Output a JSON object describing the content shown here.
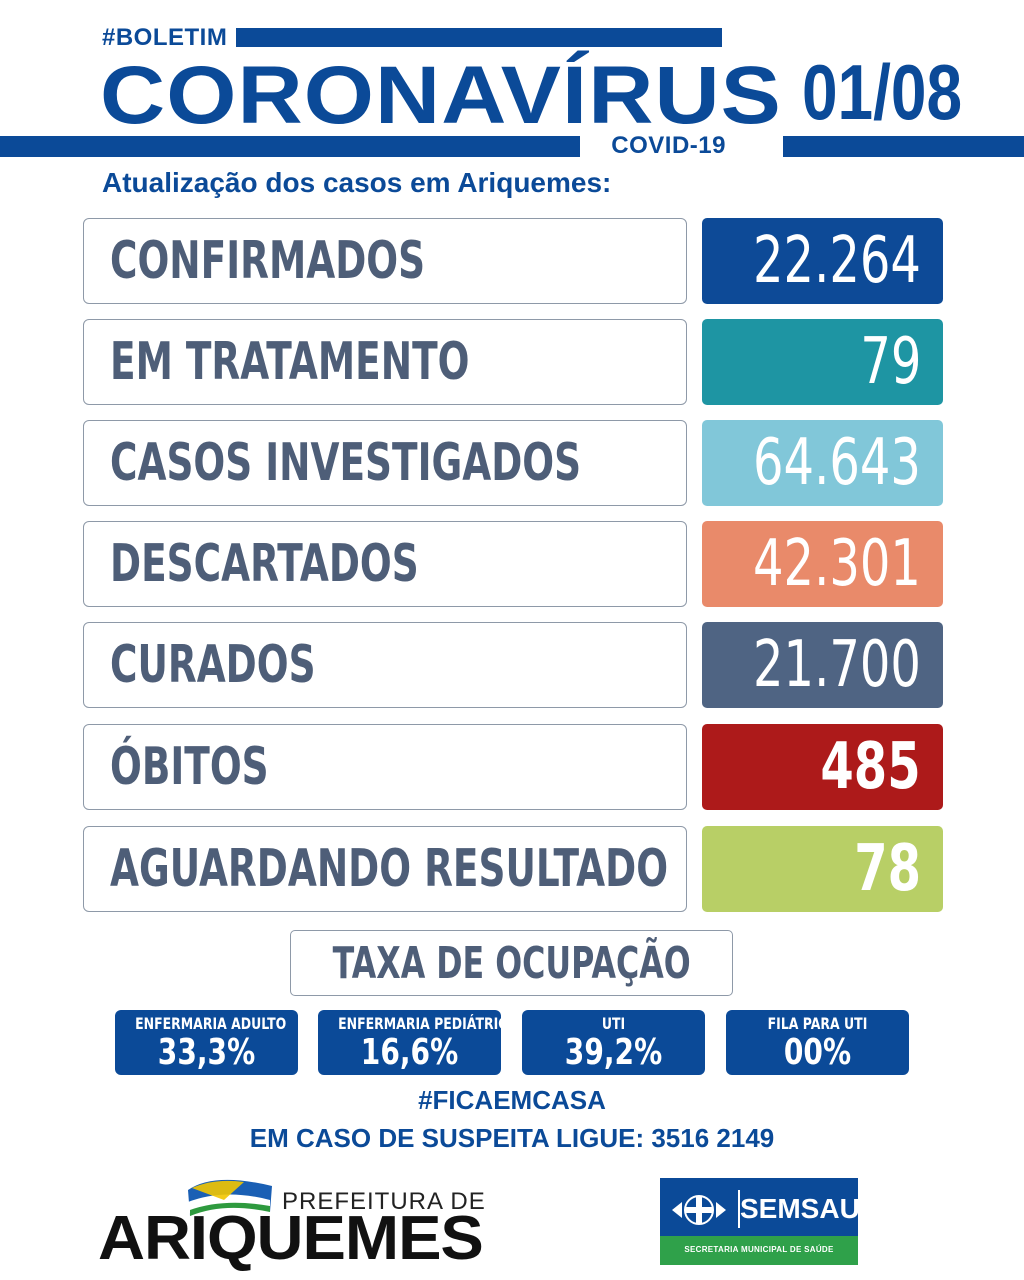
{
  "header": {
    "hashtag": "#BOLETIM",
    "title": "CORONAVÍRUS",
    "subtitle_tag": "COVID-19",
    "date": "01/08",
    "update_text": "Atualização dos casos em Ariquemes:"
  },
  "stats": [
    {
      "label": "CONFIRMADOS",
      "value": "22.264",
      "color": "#0d4a97"
    },
    {
      "label": "EM TRATAMENTO",
      "value": "79",
      "color": "#1e95a3"
    },
    {
      "label": "CASOS INVESTIGADOS",
      "value": "64.643",
      "color": "#81c7d9"
    },
    {
      "label": "DESCARTADOS",
      "value": "42.301",
      "color": "#e98a6a"
    },
    {
      "label": "CURADOS",
      "value": "21.700",
      "color": "#4f6483"
    },
    {
      "label": "ÓBITOS",
      "value": "485",
      "color": "#ad1a1a"
    },
    {
      "label": "AGUARDANDO RESULTADO",
      "value": "78",
      "color": "#b8cf66"
    }
  ],
  "occupancy": {
    "title": "TAXA DE OCUPAÇÃO",
    "items": [
      {
        "label": "ENFERMARIA ADULTO",
        "value": "33,3%"
      },
      {
        "label": "ENFERMARIA PEDIÁTRICA",
        "value": "16,6%"
      },
      {
        "label": "UTI",
        "value": "39,2%"
      },
      {
        "label": "FILA PARA UTI",
        "value": "00%"
      }
    ]
  },
  "footer": {
    "hashtag": "#FICAEMCASA",
    "phone_text": "EM CASO DE SUSPEITA LIGUE: 3516 2149"
  },
  "logos": {
    "prefeitura_label": "PREFEITURA DE",
    "prefeitura_name": "ARIQUEMES",
    "semsau_name": "SEMSAU",
    "semsau_sub": "SECRETARIA MUNICIPAL DE SAÚDE"
  }
}
